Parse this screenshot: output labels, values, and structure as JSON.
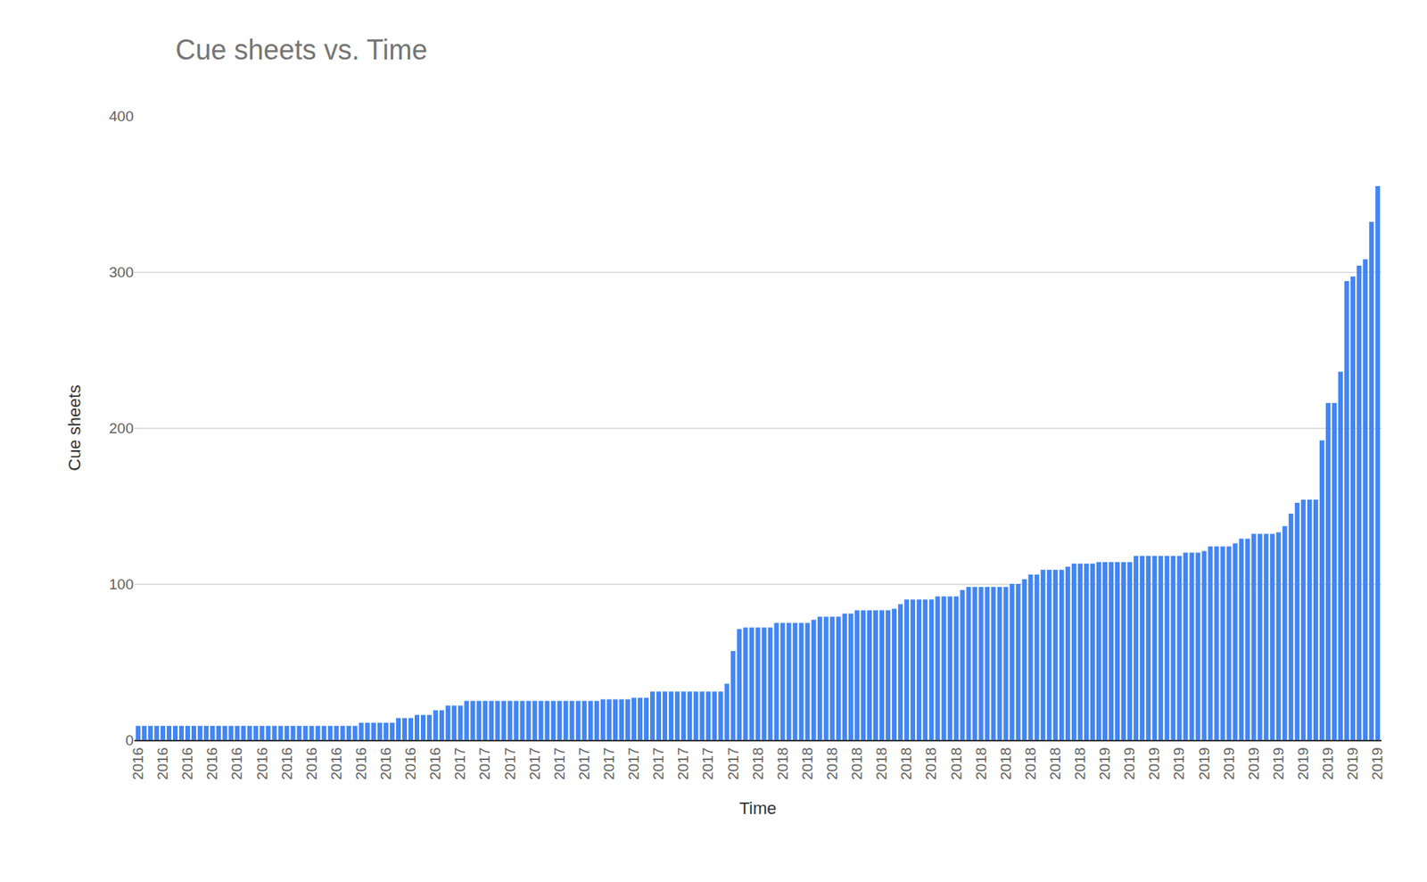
{
  "chart_data": {
    "type": "bar",
    "title": "Cue sheets vs. Time",
    "x_label": "Time",
    "y_label": "Cue sheets",
    "categories": [
      "2016",
      null,
      null,
      null,
      "2016",
      null,
      null,
      null,
      "2016",
      null,
      null,
      null,
      "2016",
      null,
      null,
      null,
      "2016",
      null,
      null,
      null,
      "2016",
      null,
      null,
      null,
      "2016",
      null,
      null,
      null,
      "2016",
      null,
      null,
      null,
      "2016",
      null,
      null,
      null,
      "2016",
      null,
      null,
      null,
      "2016",
      null,
      null,
      null,
      "2016",
      null,
      null,
      null,
      "2016",
      null,
      null,
      null,
      "2017",
      null,
      null,
      null,
      "2017",
      null,
      null,
      null,
      "2017",
      null,
      null,
      null,
      "2017",
      null,
      null,
      null,
      "2017",
      null,
      null,
      null,
      "2017",
      null,
      null,
      null,
      "2017",
      null,
      null,
      null,
      "2017",
      null,
      null,
      null,
      "2017",
      null,
      null,
      null,
      "2017",
      null,
      null,
      null,
      "2017",
      null,
      null,
      null,
      "2017",
      null,
      null,
      null,
      "2018",
      null,
      null,
      null,
      "2018",
      null,
      null,
      null,
      "2018",
      null,
      null,
      null,
      "2018",
      null,
      null,
      null,
      "2018",
      null,
      null,
      null,
      "2018",
      null,
      null,
      null,
      "2018",
      null,
      null,
      null,
      "2018",
      null,
      null,
      null,
      "2018",
      null,
      null,
      null,
      "2018",
      null,
      null,
      null,
      "2018",
      null,
      null,
      null,
      "2018",
      null,
      null,
      null,
      "2018",
      null,
      null,
      null,
      "2018",
      null,
      null,
      null,
      "2019",
      null,
      null,
      null,
      "2019",
      null,
      null,
      null,
      "2019",
      null,
      null,
      null,
      "2019",
      null,
      null,
      null,
      "2019",
      null,
      null,
      null,
      "2019",
      null,
      null,
      null,
      "2019",
      null,
      null,
      null,
      "2019",
      null,
      null,
      null,
      "2019",
      null,
      null,
      null,
      "2019",
      null,
      null,
      null,
      "2019",
      null,
      null,
      null,
      "2019"
    ],
    "values": [
      9,
      9,
      9,
      9,
      9,
      9,
      9,
      9,
      9,
      9,
      9,
      9,
      9,
      9,
      9,
      9,
      9,
      9,
      9,
      9,
      9,
      9,
      9,
      9,
      9,
      9,
      9,
      9,
      9,
      9,
      9,
      9,
      9,
      9,
      9,
      9,
      11,
      11,
      11,
      11,
      11,
      11,
      14,
      14,
      14,
      16,
      16,
      16,
      19,
      19,
      22,
      22,
      22,
      25,
      25,
      25,
      25,
      25,
      25,
      25,
      25,
      25,
      25,
      25,
      25,
      25,
      25,
      25,
      25,
      25,
      25,
      25,
      25,
      25,
      25,
      26,
      26,
      26,
      26,
      26,
      27,
      27,
      27,
      31,
      31,
      31,
      31,
      31,
      31,
      31,
      31,
      31,
      31,
      31,
      31,
      36,
      57,
      71,
      72,
      72,
      72,
      72,
      72,
      75,
      75,
      75,
      75,
      75,
      75,
      77,
      79,
      79,
      79,
      79,
      81,
      81,
      83,
      83,
      83,
      83,
      83,
      83,
      84,
      87,
      90,
      90,
      90,
      90,
      90,
      92,
      92,
      92,
      92,
      96,
      98,
      98,
      98,
      98,
      98,
      98,
      98,
      100,
      100,
      103,
      106,
      106,
      109,
      109,
      109,
      109,
      111,
      113,
      113,
      113,
      113,
      114,
      114,
      114,
      114,
      114,
      114,
      118,
      118,
      118,
      118,
      118,
      118,
      118,
      118,
      120,
      120,
      120,
      121,
      124,
      124,
      124,
      124,
      126,
      129,
      129,
      132,
      132,
      132,
      132,
      133,
      137,
      145,
      152,
      154,
      154,
      154,
      192,
      216,
      216,
      236,
      294,
      297,
      304,
      308,
      332,
      355
    ],
    "color": "#4285f4",
    "ylim": [
      0,
      400
    ],
    "yticks": [
      0,
      100,
      200,
      300,
      400
    ],
    "grid": true
  }
}
